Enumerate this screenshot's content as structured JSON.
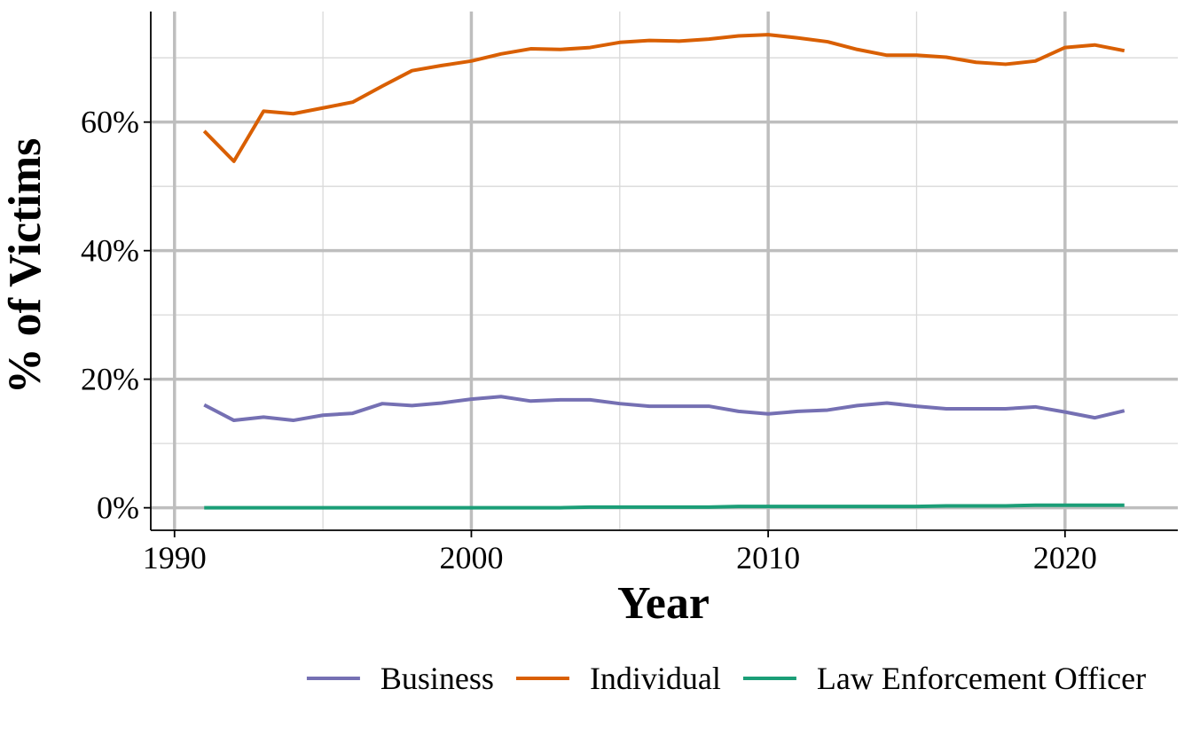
{
  "chart_data": {
    "type": "line",
    "title": "",
    "xlabel": "Year",
    "ylabel": "% of Victims",
    "x": [
      1991,
      1992,
      1993,
      1994,
      1995,
      1996,
      1997,
      1998,
      1999,
      2000,
      2001,
      2002,
      2003,
      2004,
      2005,
      2006,
      2007,
      2008,
      2009,
      2010,
      2011,
      2012,
      2013,
      2014,
      2015,
      2016,
      2017,
      2018,
      2019,
      2020,
      2021,
      2022
    ],
    "xlim": [
      1989.2,
      2023.8
    ],
    "ylim": [
      -3.5,
      77.2
    ],
    "x_ticks": [
      1990,
      2000,
      2010,
      2020
    ],
    "x_tick_labels": [
      "1990",
      "2000",
      "2010",
      "2020"
    ],
    "y_ticks": [
      0,
      20,
      40,
      60
    ],
    "y_tick_labels": [
      "0%",
      "20%",
      "40%",
      "60%"
    ],
    "grid": true,
    "legend_position": "bottom",
    "series": [
      {
        "name": "Business",
        "color": "#7570b3",
        "values": [
          16.0,
          13.6,
          14.1,
          13.6,
          14.4,
          14.7,
          16.2,
          15.9,
          16.3,
          16.9,
          17.3,
          16.6,
          16.8,
          16.8,
          16.2,
          15.8,
          15.8,
          15.8,
          15.0,
          14.6,
          15.0,
          15.2,
          15.9,
          16.3,
          15.8,
          15.4,
          15.4,
          15.4,
          15.7,
          14.9,
          14.0,
          15.1
        ]
      },
      {
        "name": "Individual",
        "color": "#d95f02",
        "values": [
          58.6,
          53.9,
          61.7,
          61.3,
          62.2,
          63.1,
          65.6,
          68.0,
          68.8,
          69.5,
          70.6,
          71.4,
          71.3,
          71.6,
          72.4,
          72.7,
          72.6,
          72.9,
          73.4,
          73.6,
          73.1,
          72.5,
          71.3,
          70.4,
          70.4,
          70.1,
          69.3,
          69.0,
          69.5,
          71.6,
          72.0,
          71.1
        ]
      },
      {
        "name": "Law Enforcement Officer",
        "color": "#1b9e77",
        "values": [
          0.0,
          0.0,
          0.0,
          0.0,
          0.0,
          0.0,
          0.0,
          0.0,
          0.0,
          0.0,
          0.0,
          0.0,
          0.0,
          0.1,
          0.1,
          0.1,
          0.1,
          0.1,
          0.2,
          0.2,
          0.2,
          0.2,
          0.2,
          0.2,
          0.2,
          0.3,
          0.3,
          0.3,
          0.4,
          0.4,
          0.4,
          0.4
        ]
      }
    ]
  }
}
